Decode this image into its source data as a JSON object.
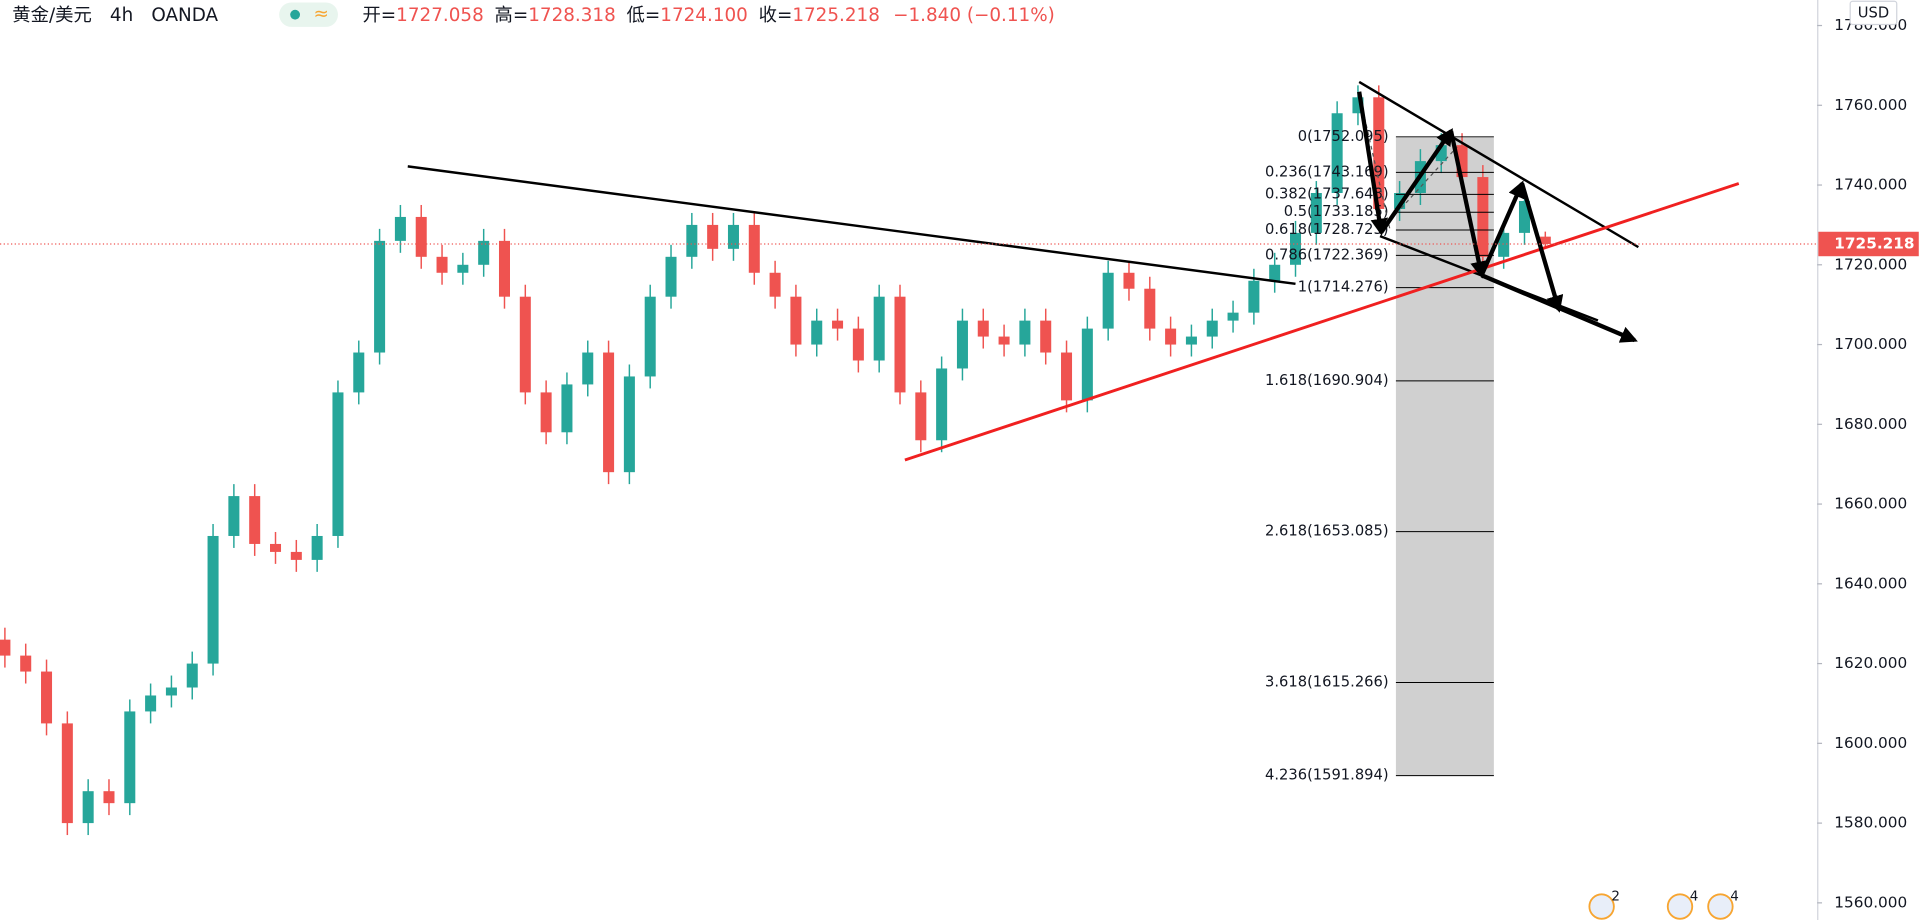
{
  "header": {
    "symbol": "黄金/美元",
    "interval": "4h",
    "exchange": "OANDA",
    "ohlc": [
      {
        "label": "开=",
        "value": "1727.058"
      },
      {
        "label": "高=",
        "value": "1728.318"
      },
      {
        "label": "低=",
        "value": "1724.100"
      },
      {
        "label": "收=",
        "value": "1725.218"
      }
    ],
    "change": "−1.840 (−0.11%)"
  },
  "event_badges": [
    "2",
    "4",
    "4"
  ],
  "chart_data": {
    "type": "candlestick",
    "currency": "USD",
    "up_color": "#26a69a",
    "down_color": "#ef5350",
    "open": [
      1626,
      1622,
      1618,
      1605,
      1580,
      1588,
      1585,
      1608,
      1612,
      1614,
      1620,
      1652,
      1662,
      1650,
      1648,
      1646,
      1652,
      1688,
      1698,
      1726,
      1732,
      1722,
      1718,
      1720,
      1726,
      1712,
      1688,
      1678,
      1690,
      1698,
      1668,
      1692,
      1712,
      1722,
      1730,
      1724,
      1730,
      1718,
      1712,
      1700,
      1706,
      1704,
      1696,
      1712,
      1688,
      1676,
      1694,
      1706,
      1702,
      1700,
      1706,
      1698,
      1686,
      1704,
      1718,
      1714,
      1704,
      1700,
      1702,
      1706,
      1708,
      1716,
      1720,
      1728,
      1738,
      1758,
      1762,
      1734,
      1738,
      1746,
      1750,
      1742,
      1722,
      1728,
      1727.058
    ],
    "high": [
      1629,
      1625,
      1621,
      1608,
      1591,
      1591,
      1611,
      1615,
      1617,
      1623,
      1655,
      1665,
      1665,
      1653,
      1651,
      1655,
      1691,
      1701,
      1729,
      1735,
      1735,
      1725,
      1723,
      1729,
      1729,
      1715,
      1691,
      1693,
      1701,
      1701,
      1695,
      1715,
      1725,
      1733,
      1733,
      1733,
      1733,
      1721,
      1715,
      1709,
      1709,
      1707,
      1715,
      1715,
      1691,
      1697,
      1709,
      1709,
      1705,
      1709,
      1709,
      1701,
      1707,
      1721,
      1721,
      1717,
      1707,
      1705,
      1709,
      1711,
      1719,
      1723,
      1731,
      1741,
      1761,
      1765,
      1765,
      1741,
      1749,
      1753,
      1753,
      1745,
      1731,
      1739,
      1728.318
    ],
    "low": [
      1619,
      1615,
      1602,
      1577,
      1577,
      1582,
      1582,
      1605,
      1609,
      1611,
      1617,
      1649,
      1647,
      1645,
      1643,
      1643,
      1649,
      1685,
      1695,
      1723,
      1719,
      1715,
      1715,
      1717,
      1709,
      1685,
      1675,
      1675,
      1687,
      1665,
      1665,
      1689,
      1709,
      1719,
      1721,
      1721,
      1715,
      1709,
      1697,
      1697,
      1701,
      1693,
      1693,
      1685,
      1673,
      1673,
      1691,
      1699,
      1697,
      1697,
      1695,
      1683,
      1683,
      1701,
      1711,
      1701,
      1697,
      1697,
      1699,
      1703,
      1705,
      1713,
      1717,
      1725,
      1735,
      1755,
      1731,
      1731,
      1735,
      1743,
      1739,
      1719,
      1719,
      1725,
      1724.1
    ],
    "close": [
      1622,
      1618,
      1605,
      1580,
      1588,
      1585,
      1608,
      1612,
      1614,
      1620,
      1652,
      1662,
      1650,
      1648,
      1646,
      1652,
      1688,
      1698,
      1726,
      1732,
      1722,
      1718,
      1720,
      1726,
      1712,
      1688,
      1678,
      1690,
      1698,
      1668,
      1692,
      1712,
      1722,
      1730,
      1724,
      1730,
      1718,
      1712,
      1700,
      1706,
      1704,
      1696,
      1712,
      1688,
      1676,
      1694,
      1706,
      1702,
      1700,
      1706,
      1698,
      1686,
      1704,
      1718,
      1714,
      1704,
      1700,
      1702,
      1706,
      1708,
      1716,
      1720,
      1728,
      1738,
      1758,
      1762,
      1734,
      1738,
      1746,
      1750,
      1742,
      1722,
      1728,
      1736,
      1725.218
    ],
    "ylim": [
      1555.7,
      1786.4
    ],
    "yticks": [
      {
        "value": 1560,
        "label": "1560.000"
      },
      {
        "value": 1580,
        "label": "1580.000"
      },
      {
        "value": 1600,
        "label": "1600.000"
      },
      {
        "value": 1620,
        "label": "1620.000"
      },
      {
        "value": 1640,
        "label": "1640.000"
      },
      {
        "value": 1660,
        "label": "1660.000"
      },
      {
        "value": 1680,
        "label": "1680.000"
      },
      {
        "value": 1700,
        "label": "1700.000"
      },
      {
        "value": 1720,
        "label": "1720.000"
      },
      {
        "value": 1740,
        "label": "1740.000"
      },
      {
        "value": 1760,
        "label": "1760.000"
      },
      {
        "value": 1780,
        "label": "1780.000"
      }
    ],
    "last_price": {
      "value": 1725.218,
      "label": "1725.218",
      "color": "#ef5350"
    },
    "fib_color": "#c8c8c8",
    "fib_levels": [
      {
        "value": 1752.095,
        "label": "0(1752.095)"
      },
      {
        "value": 1743.169,
        "label": "0.236(1743.169)"
      },
      {
        "value": 1737.648,
        "label": "0.382(1737.648)"
      },
      {
        "value": 1733.185,
        "label": "0.5(1733.185)"
      },
      {
        "value": 1728.723,
        "label": "0.618(1728.723)"
      },
      {
        "value": 1722.369,
        "label": "0.786(1722.369)"
      },
      {
        "value": 1714.276,
        "label": "1(1714.276)"
      },
      {
        "value": 1690.904,
        "label": "1.618(1690.904)"
      },
      {
        "value": 1653.085,
        "label": "2.618(1653.085)"
      },
      {
        "value": 1615.266,
        "label": "3.618(1615.266)"
      },
      {
        "value": 1591.894,
        "label": "4.236(1591.894)"
      }
    ]
  }
}
